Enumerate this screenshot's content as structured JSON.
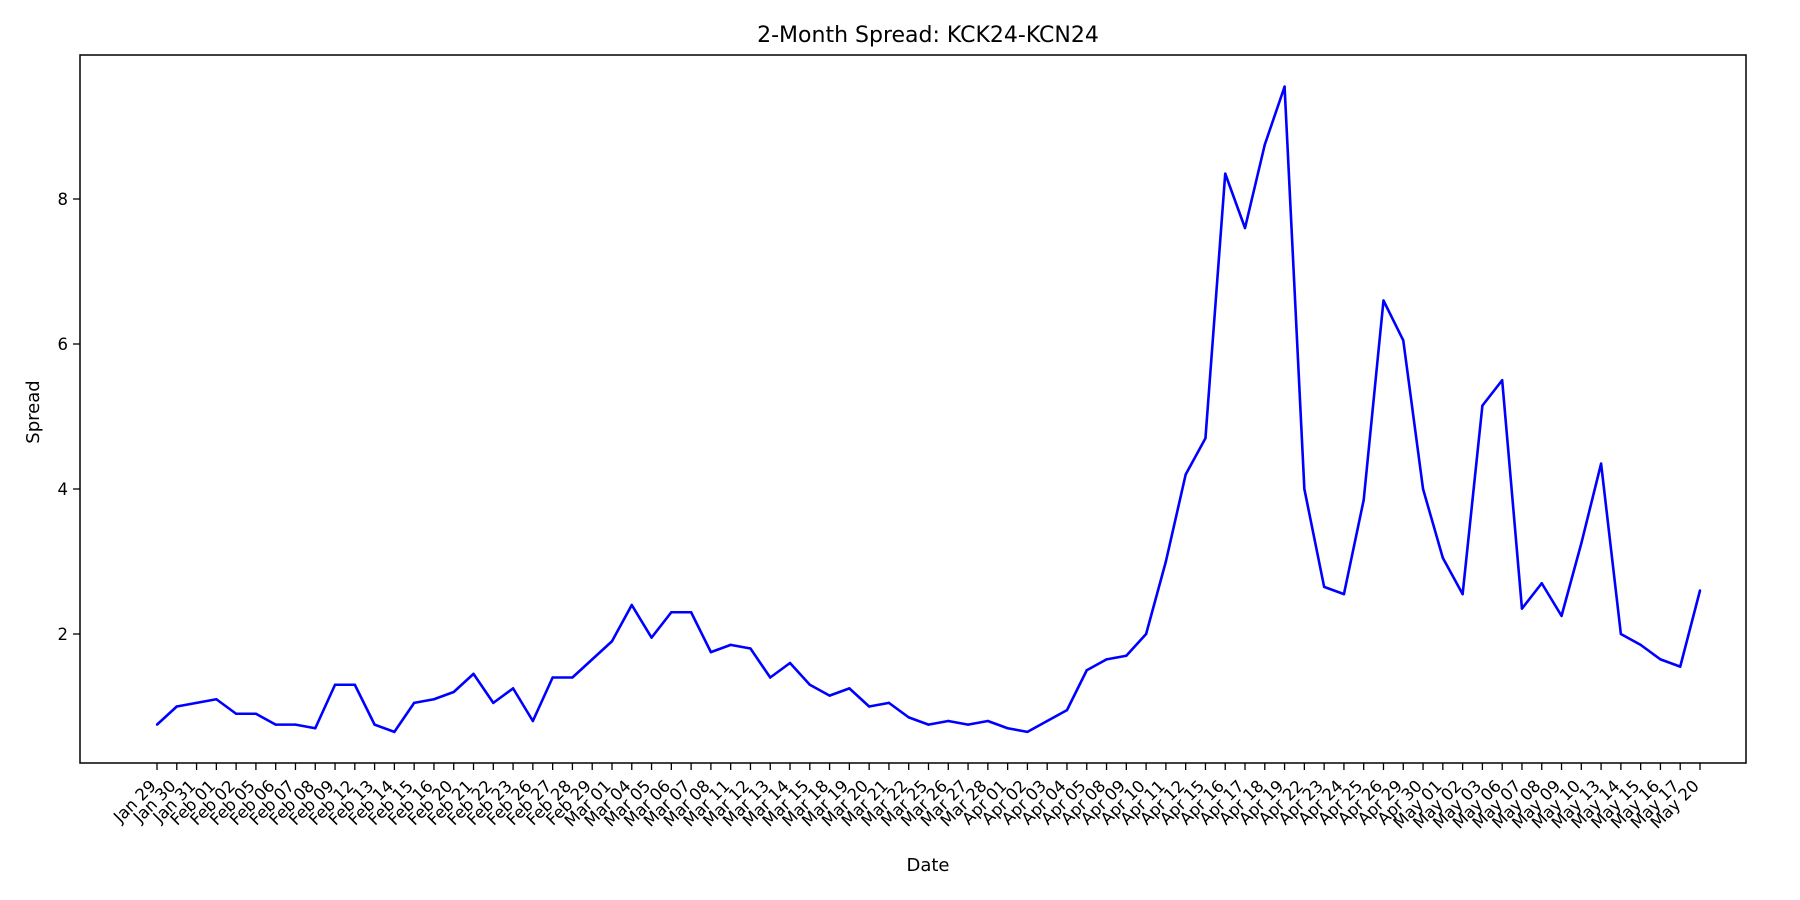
{
  "chart_data": {
    "type": "line",
    "title": "2-Month Spread: KCK24-KCN24",
    "xlabel": "Date",
    "ylabel": "Spread",
    "grid": false,
    "legend": "none",
    "y_ticks": [
      2,
      4,
      6,
      8
    ],
    "ylim": [
      0.4,
      9.8
    ],
    "series": [
      {
        "color": "#0000ff",
        "x": [
          "Jan 29",
          "Jan 30",
          "Jan 31",
          "Feb 01",
          "Feb 02",
          "Feb 05",
          "Feb 06",
          "Feb 07",
          "Feb 08",
          "Feb 09",
          "Feb 12",
          "Feb 13",
          "Feb 14",
          "Feb 15",
          "Feb 16",
          "Feb 20",
          "Feb 21",
          "Feb 22",
          "Feb 23",
          "Feb 26",
          "Feb 27",
          "Feb 28",
          "Feb 29",
          "Mar 01",
          "Mar 04",
          "Mar 05",
          "Mar 06",
          "Mar 07",
          "Mar 08",
          "Mar 11",
          "Mar 12",
          "Mar 13",
          "Mar 14",
          "Mar 15",
          "Mar 18",
          "Mar 19",
          "Mar 20",
          "Mar 21",
          "Mar 22",
          "Mar 25",
          "Mar 26",
          "Mar 27",
          "Mar 28",
          "Apr 01",
          "Apr 02",
          "Apr 03",
          "Apr 04",
          "Apr 05",
          "Apr 08",
          "Apr 09",
          "Apr 10",
          "Apr 11",
          "Apr 12",
          "Apr 15",
          "Apr 16",
          "Apr 17",
          "Apr 18",
          "Apr 19",
          "Apr 22",
          "Apr 23",
          "Apr 24",
          "Apr 25",
          "Apr 26",
          "Apr 29",
          "Apr 30",
          "May 01",
          "May 02",
          "May 03",
          "May 06",
          "May 07",
          "May 08",
          "May 09",
          "May 10",
          "May 13",
          "May 14",
          "May 15",
          "May 16",
          "May 17",
          "May 20"
        ],
        "values": [
          0.75,
          1.0,
          1.05,
          1.1,
          0.9,
          0.9,
          0.75,
          0.75,
          0.7,
          1.3,
          1.3,
          0.75,
          0.65,
          1.05,
          1.1,
          1.2,
          1.45,
          1.05,
          1.25,
          0.8,
          1.4,
          1.4,
          1.65,
          1.9,
          2.4,
          1.95,
          2.3,
          2.3,
          1.75,
          1.85,
          1.8,
          1.4,
          1.6,
          1.3,
          1.15,
          1.25,
          1.0,
          1.05,
          0.85,
          0.75,
          0.8,
          0.75,
          0.8,
          0.7,
          0.65,
          0.8,
          0.95,
          1.5,
          1.65,
          1.7,
          2.0,
          3.0,
          4.2,
          4.7,
          8.35,
          7.6,
          8.75,
          9.55,
          4.0,
          2.65,
          2.55,
          3.85,
          6.6,
          6.05,
          4.0,
          3.05,
          2.55,
          5.15,
          5.5,
          2.35,
          2.7,
          2.25,
          3.25,
          4.35,
          2.0,
          1.85,
          1.65,
          1.55,
          2.6
        ]
      }
    ]
  }
}
